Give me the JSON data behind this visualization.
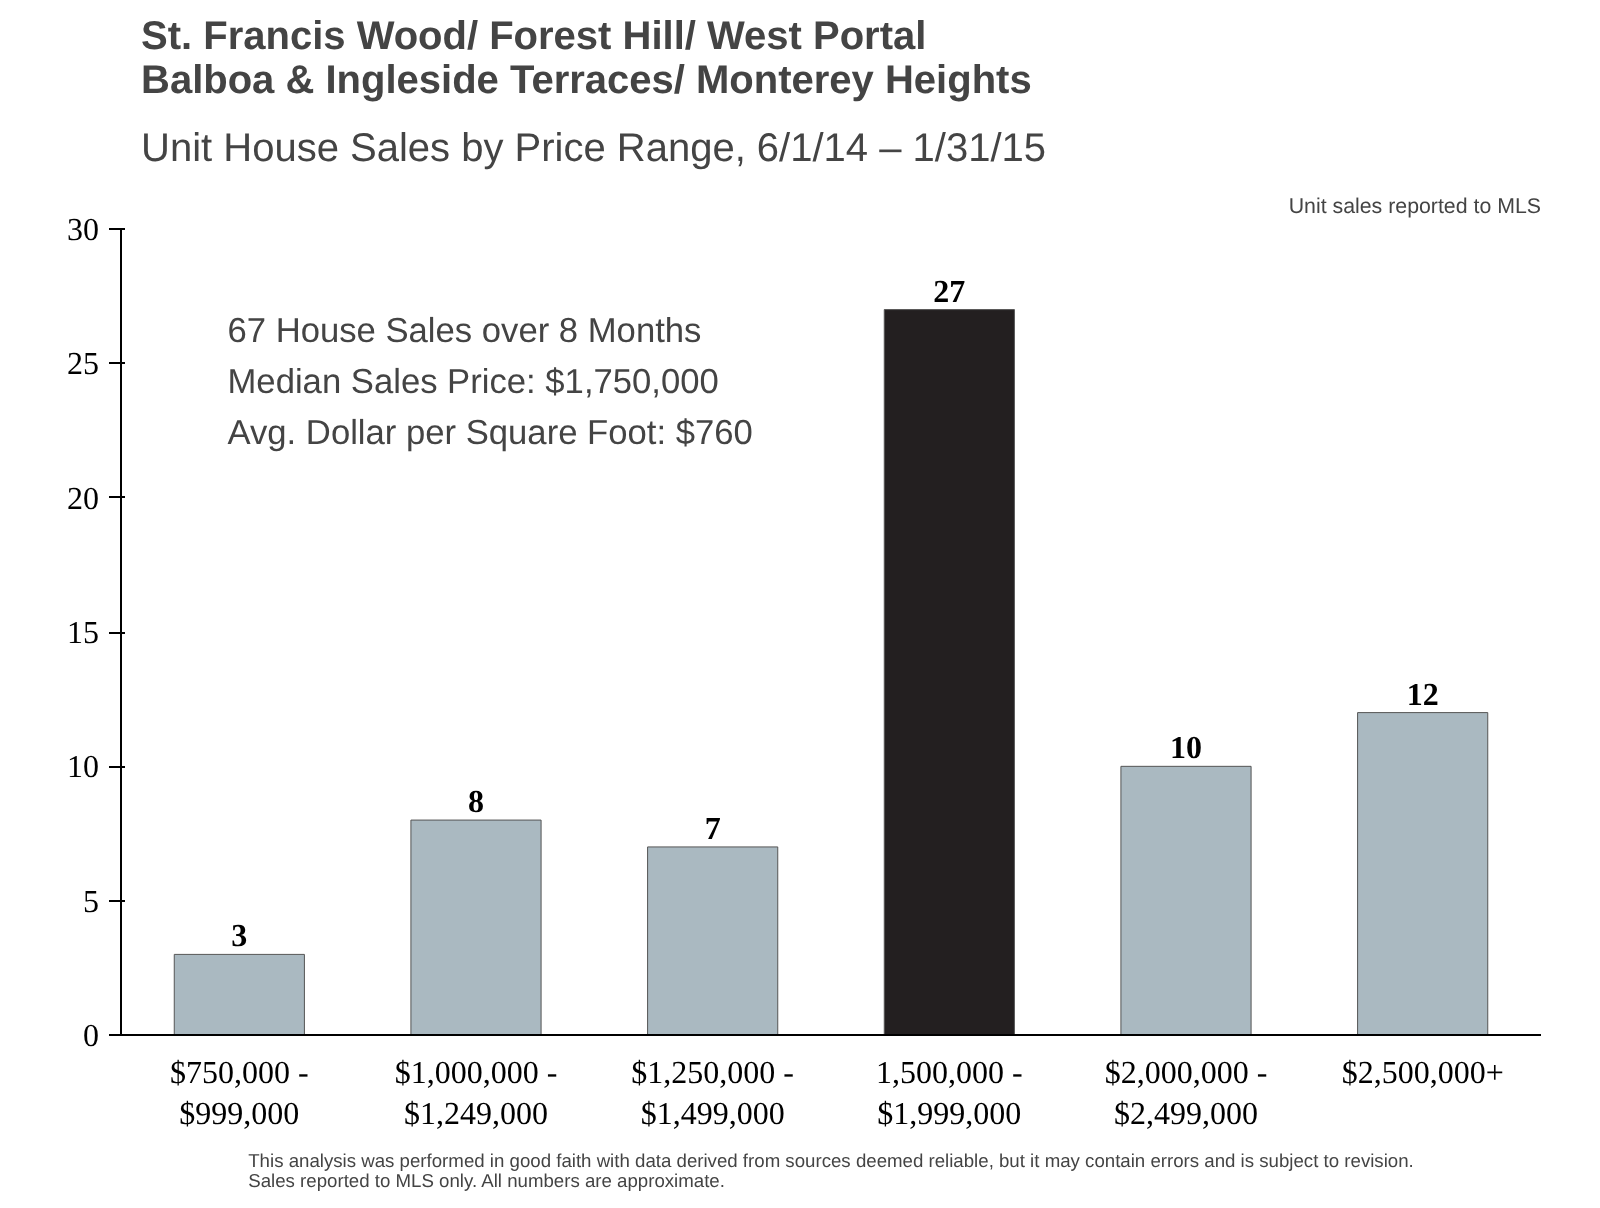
{
  "chart_data": {
    "type": "bar",
    "title": "St. Francis Wood/ Forest Hill/ West Portal\nBalboa & Ingleside Terraces/ Monterey Heights",
    "subtitle": "Unit House Sales by Price Range, 6/1/14 – 1/31/15",
    "categories": [
      "$750,000 -\n$999,000",
      "$1,000,000 -\n$1,249,000",
      "$1,250,000 -\n$1,499,000",
      "1,500,000 -\n$1,999,000",
      "$2,000,000 -\n$2,499,000",
      "$2,500,000+"
    ],
    "values": [
      3,
      8,
      7,
      27,
      10,
      12
    ],
    "colors": [
      "#aab9c1",
      "#aab9c1",
      "#aab9c1",
      "#231f20",
      "#aab9c1",
      "#aab9c1"
    ],
    "ylim": [
      0,
      30
    ],
    "yticks": [
      0,
      5,
      10,
      15,
      20,
      25,
      30
    ],
    "grid": false,
    "data_labels": true,
    "annotations": [
      "Unit sales reported to MLS",
      "67 House Sales over 8 Months",
      "Median Sales Price:  $1,750,000",
      "Avg. Dollar per Square Foot: $760",
      "This analysis was performed in good faith with data derived from sources deemed reliable, but it may contain errors and is subject to revision.\nSales reported to MLS  only. All numbers are approximate."
    ]
  }
}
